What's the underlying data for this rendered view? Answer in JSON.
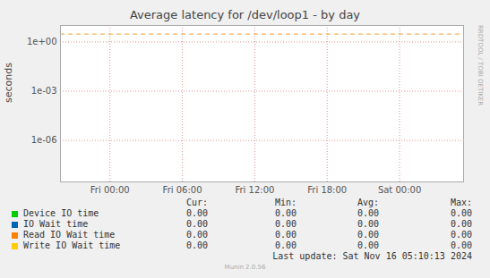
{
  "chart_data": {
    "type": "line",
    "title": "Average latency for /dev/loop1 - by day",
    "y_label": "seconds",
    "log": "y",
    "grid": true,
    "xlim": [
      -4.1,
      29.3
    ],
    "xticks": [
      {
        "value": 0,
        "label": "Fri 00:00"
      },
      {
        "value": 6,
        "label": "Fri 06:00"
      },
      {
        "value": 12,
        "label": "Fri 12:00"
      },
      {
        "value": 18,
        "label": "Fri 18:00"
      },
      {
        "value": 24,
        "label": "Sat 00:00"
      }
    ],
    "ylim": [
      3e-09,
      10
    ],
    "yticks": [
      {
        "value": 1e-06,
        "label": "1e-06"
      },
      {
        "value": 0.001,
        "label": "1e-03"
      },
      {
        "value": 1,
        "label": "1e+00"
      }
    ],
    "x": [
      -4.1,
      29.2
    ],
    "series": [
      {
        "name": "Device IO time",
        "color": "#00cc00",
        "values": [
          0,
          0
        ],
        "stats": [
          0,
          0,
          0,
          0
        ],
        "stats_labels": [
          "0.00",
          "0.00",
          "0.00",
          "0.00"
        ]
      },
      {
        "name": "IO Wait time",
        "color": "#0066b3",
        "values": [
          0,
          0
        ],
        "stats": [
          0,
          0,
          0,
          0
        ],
        "stats_labels": [
          "0.00",
          "0.00",
          "0.00",
          "0.00"
        ]
      },
      {
        "name": "Read IO Wait time",
        "color": "#ff8000",
        "values": [
          0,
          0
        ],
        "stats": [
          0,
          0,
          0,
          0
        ],
        "stats_labels": [
          "0.00",
          "0.00",
          "0.00",
          "0.00"
        ]
      },
      {
        "name": "Write IO Wait time",
        "color": "#ffcc00",
        "values": [
          0,
          0
        ],
        "stats": [
          0,
          0,
          0,
          0
        ],
        "stats_labels": [
          "0.00",
          "0.00",
          "0.00",
          "0.00"
        ]
      }
    ],
    "stats_columns": [
      "Cur:",
      "Min:",
      "Avg:",
      "Max:"
    ],
    "threshold": {
      "value": 3,
      "color": "#f0a030",
      "line_style": "dashed"
    },
    "last_update": "Last update: Sat Nov 16 05:10:13 2024",
    "footer": "Munin 2.0.56",
    "watermark": "RRDTOOL / TOBI OETIKER"
  }
}
